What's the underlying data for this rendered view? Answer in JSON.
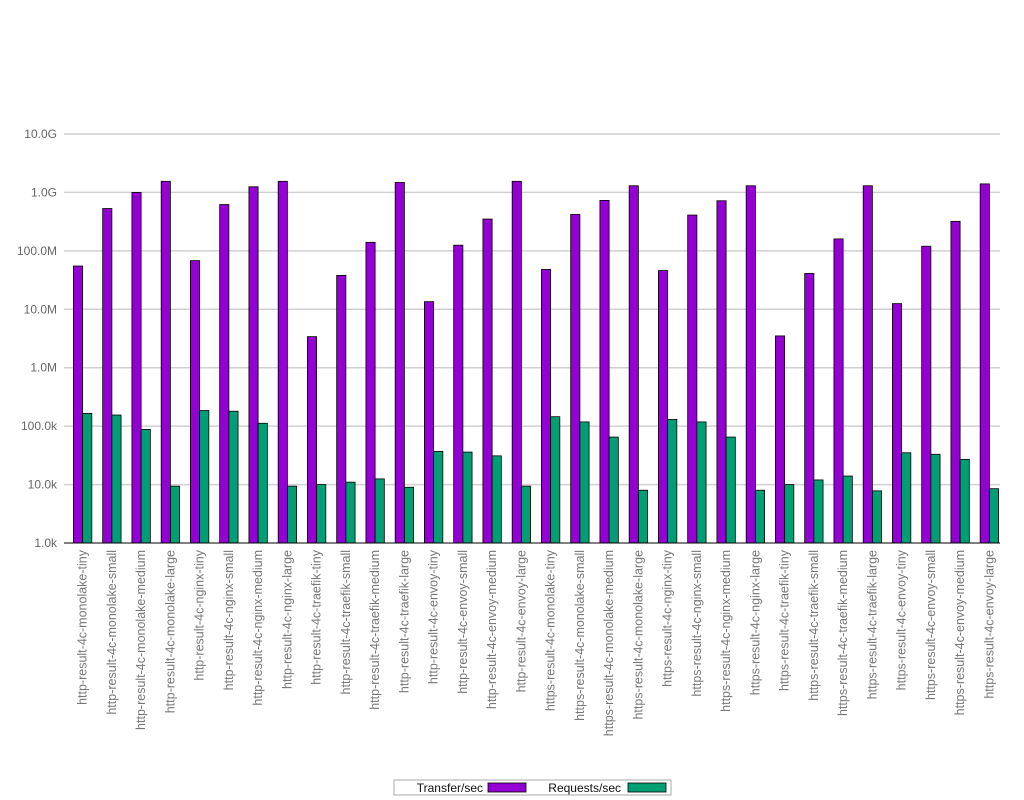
{
  "chart_data": {
    "type": "bar",
    "yscale": "log",
    "ylim": [
      1000,
      10000000000
    ],
    "y_tick_values": [
      1000,
      10000,
      100000,
      1000000,
      10000000,
      100000000,
      1000000000,
      10000000000
    ],
    "y_tick_labels": [
      "1.0k",
      "10.0k",
      "100.0k",
      "1.0M",
      "10.0M",
      "100.0M",
      "1.0G",
      "10.0G"
    ],
    "grid": true,
    "legend_position": "bottom-center",
    "categories": [
      "http-result-4c-monolake-tiny",
      "http-result-4c-monolake-small",
      "http-result-4c-monolake-medium",
      "http-result-4c-monolake-large",
      "http-result-4c-nginx-tiny",
      "http-result-4c-nginx-small",
      "http-result-4c-nginx-medium",
      "http-result-4c-nginx-large",
      "http-result-4c-traefik-tiny",
      "http-result-4c-traefik-small",
      "http-result-4c-traefik-medium",
      "http-result-4c-traefik-large",
      "http-result-4c-envoy-tiny",
      "http-result-4c-envoy-small",
      "http-result-4c-envoy-medium",
      "http-result-4c-envoy-large",
      "https-result-4c-monolake-tiny",
      "https-result-4c-monolake-small",
      "https-result-4c-monolake-medium",
      "https-result-4c-monolake-large",
      "https-result-4c-nginx-tiny",
      "https-result-4c-nginx-small",
      "https-result-4c-nginx-medium",
      "https-result-4c-nginx-large",
      "https-result-4c-traefik-tiny",
      "https-result-4c-traefik-small",
      "https-result-4c-traefik-medium",
      "https-result-4c-traefik-large",
      "https-result-4c-envoy-tiny",
      "https-result-4c-envoy-small",
      "https-result-4c-envoy-medium",
      "https-result-4c-envoy-large"
    ],
    "series": [
      {
        "name": "Transfer/sec",
        "color": "#9400d3",
        "values": [
          55000000,
          530000000,
          1000000000,
          1550000000,
          68000000,
          620000000,
          1250000000,
          1550000000,
          3400000,
          38000000,
          140000000,
          1480000000,
          13500000,
          125000000,
          350000000,
          1550000000,
          48000000,
          420000000,
          730000000,
          1300000000,
          46000000,
          410000000,
          720000000,
          1300000000,
          3500000,
          41000000,
          160000000,
          1300000000,
          12500000,
          120000000,
          320000000,
          1400000000
        ]
      },
      {
        "name": "Requests/sec",
        "color": "#009e73",
        "values": [
          165000,
          155000,
          88000,
          9400,
          185000,
          180000,
          112000,
          9400,
          10000,
          11000,
          12500,
          9000,
          37000,
          36000,
          31000,
          9400,
          145000,
          118000,
          65000,
          8000,
          130000,
          118000,
          65000,
          8000,
          10000,
          12000,
          14000,
          7800,
          35000,
          33000,
          27000,
          8500
        ]
      }
    ]
  }
}
